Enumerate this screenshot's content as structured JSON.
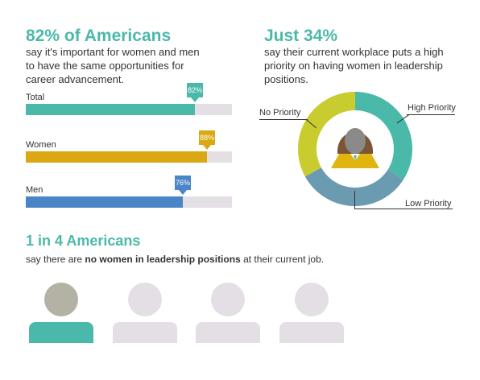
{
  "left_panel": {
    "headline": "82% of Americans",
    "subtext": "say it's important for women and men to have the same opportunities for career advancement."
  },
  "right_panel": {
    "headline": "Just 34%",
    "subtext": "say their current workplace puts a high priority on having women in leadership positions."
  },
  "bottom_panel": {
    "headline": "1 in 4 Americans",
    "subtext_prefix": "say there are ",
    "subtext_bold": "no women in leadership positions",
    "subtext_suffix": " at their current job."
  },
  "colors": {
    "teal": "#4bb9aa",
    "gold": "#d9a813",
    "blue": "#4a86c7",
    "lime": "#c8cc2f",
    "slate": "#6a9bb1",
    "track": "#e4dfe5",
    "gray_person": "#b4b2a4",
    "light_person": "#e4dfe5"
  },
  "chart_data": [
    {
      "type": "bar",
      "orientation": "horizontal",
      "categories": [
        "Total",
        "Women",
        "Men"
      ],
      "values": [
        82,
        88,
        76
      ],
      "value_labels": [
        "82%",
        "88%",
        "76%"
      ],
      "colors": [
        "#4bb9aa",
        "#d9a813",
        "#4a86c7"
      ],
      "xlim": [
        0,
        100
      ]
    },
    {
      "type": "pie",
      "style": "donut",
      "labels": [
        "High Priority",
        "Low Priority",
        "No Priority"
      ],
      "values": [
        34,
        33,
        33
      ],
      "colors": [
        "#4bb9aa",
        "#6a9bb1",
        "#c8cc2f"
      ],
      "center_icon": "woman-icon"
    },
    {
      "type": "pictograph",
      "total": 4,
      "highlighted": 1,
      "icon": "person-icon"
    }
  ]
}
